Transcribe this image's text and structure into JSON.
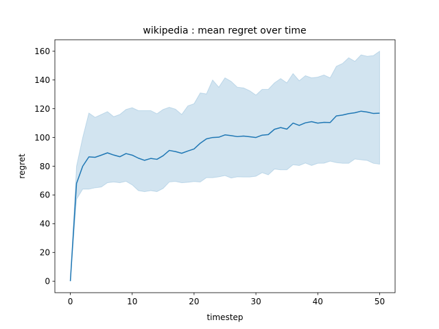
{
  "chart_data": {
    "type": "line",
    "title": "wikipedia : mean regret over time",
    "xlabel": "timestep",
    "ylabel": "regret",
    "xlim": [
      -2.5,
      52.5
    ],
    "ylim": [
      -8,
      168
    ],
    "xticks": [
      0,
      10,
      20,
      30,
      40,
      50
    ],
    "yticks": [
      0,
      20,
      40,
      60,
      80,
      100,
      120,
      140,
      160
    ],
    "grid": false,
    "legend": "none",
    "colors": {
      "line": "#1f77b4",
      "band": "#1f77b4"
    },
    "band_opacity": 0.2,
    "series": [
      {
        "x": [
          0,
          1,
          2,
          3,
          4,
          5,
          6,
          7,
          8,
          9,
          10,
          11,
          12,
          13,
          14,
          15,
          16,
          17,
          18,
          19,
          20,
          21,
          22,
          23,
          24,
          25,
          26,
          27,
          28,
          29,
          30,
          31,
          32,
          33,
          34,
          35,
          36,
          37,
          38,
          39,
          40,
          41,
          42,
          43,
          44,
          45,
          46,
          47,
          48,
          49,
          50
        ],
        "mean": [
          0,
          68,
          80,
          86.5,
          86.2,
          87.7,
          89.3,
          87.8,
          86.6,
          88.8,
          87.7,
          85.6,
          84.1,
          85.4,
          84.8,
          87.3,
          91,
          90.2,
          89,
          90.6,
          92,
          96,
          99,
          100,
          100.2,
          101.8,
          101.3,
          100.6,
          101,
          100.5,
          100,
          101.6,
          102,
          105.7,
          106.9,
          105.8,
          110,
          108.4,
          110.2,
          111,
          110,
          110.5,
          110.4,
          115,
          115.6,
          116.6,
          117.2,
          118.3,
          117.7,
          116.7,
          116.9
        ],
        "lower": [
          0,
          57,
          64,
          64,
          65,
          65.5,
          68.5,
          69,
          68.5,
          69.5,
          67,
          63,
          62.3,
          63,
          62.3,
          64.5,
          69,
          69.4,
          68.5,
          68.8,
          69.3,
          69,
          72,
          72,
          72.6,
          73.5,
          71.8,
          72.6,
          72.5,
          72.5,
          73,
          75.5,
          74,
          78,
          77.5,
          77.5,
          81,
          80.5,
          82.2,
          80.5,
          82,
          82.1,
          83.5,
          82.5,
          82,
          82,
          85,
          84.5,
          84,
          82,
          81.4
        ],
        "upper": [
          0,
          80,
          100,
          117,
          114,
          116,
          118,
          114.5,
          116,
          119.5,
          120.7,
          118.7,
          118.7,
          118.7,
          116.5,
          119.5,
          121,
          119.7,
          116,
          122,
          123.5,
          131,
          130.3,
          140,
          135,
          141.5,
          139,
          135,
          134.5,
          132.5,
          129.5,
          133.5,
          133.5,
          138,
          141,
          138,
          144.5,
          139.5,
          143,
          141.5,
          142,
          143.5,
          141.5,
          149.5,
          151.5,
          155.5,
          153,
          157.5,
          156.5,
          157,
          160
        ]
      }
    ]
  }
}
